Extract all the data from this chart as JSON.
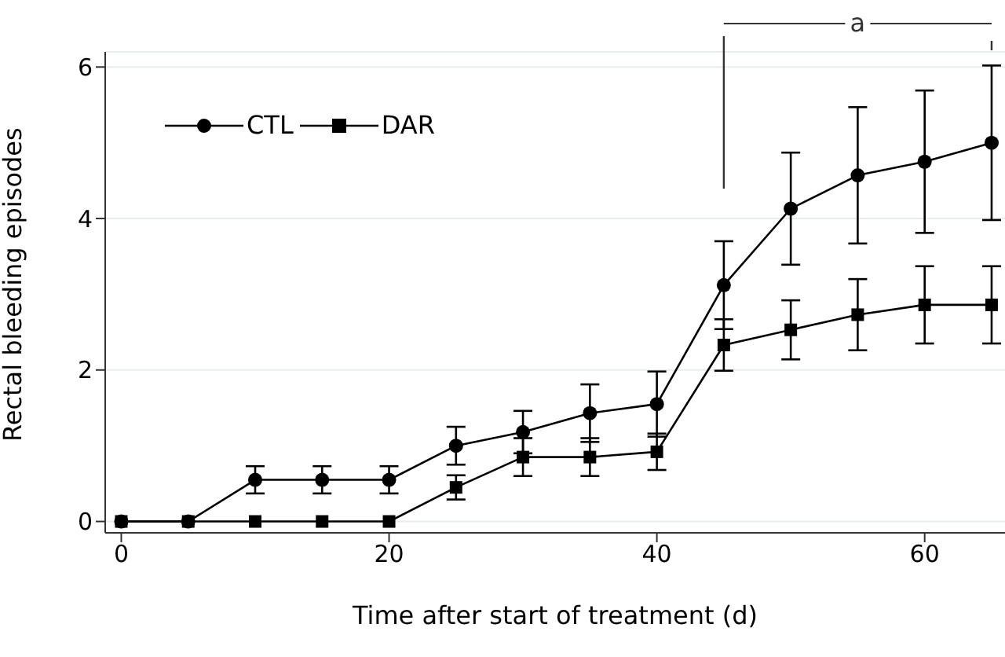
{
  "chart_data": {
    "type": "line",
    "xlabel": "Time after start of treatment (d)",
    "ylabel": "Rectal bleeding episodes",
    "x": [
      0,
      5,
      10,
      15,
      20,
      25,
      30,
      35,
      40,
      45,
      50,
      55,
      60,
      65
    ],
    "series": [
      {
        "name": "CTL",
        "color": "#000000",
        "marker": "circle",
        "values": [
          0,
          0,
          0.55,
          0.55,
          0.55,
          1.0,
          1.18,
          1.43,
          1.55,
          3.12,
          4.13,
          4.57,
          4.75,
          5.0
        ],
        "errors": [
          null,
          null,
          0.18,
          0.18,
          0.18,
          0.25,
          0.28,
          0.38,
          0.43,
          0.58,
          0.74,
          0.9,
          0.94,
          1.02
        ]
      },
      {
        "name": "DAR",
        "color": "#000000",
        "marker": "square",
        "values": [
          0,
          0,
          0,
          0,
          0,
          0.45,
          0.85,
          0.85,
          0.92,
          2.33,
          2.53,
          2.73,
          2.86,
          2.86
        ],
        "errors": [
          null,
          null,
          null,
          null,
          null,
          0.16,
          0.25,
          0.25,
          0.24,
          0.34,
          0.39,
          0.47,
          0.51,
          0.51
        ]
      }
    ],
    "xlim": [
      -1.2,
      66
    ],
    "xticks": [
      0,
      20,
      40,
      60
    ],
    "ylim": [
      -0.15,
      6.2
    ],
    "yticks": [
      0,
      2,
      4,
      6
    ],
    "grid": "y",
    "legend": "top left",
    "annotations": [
      "a"
    ]
  }
}
